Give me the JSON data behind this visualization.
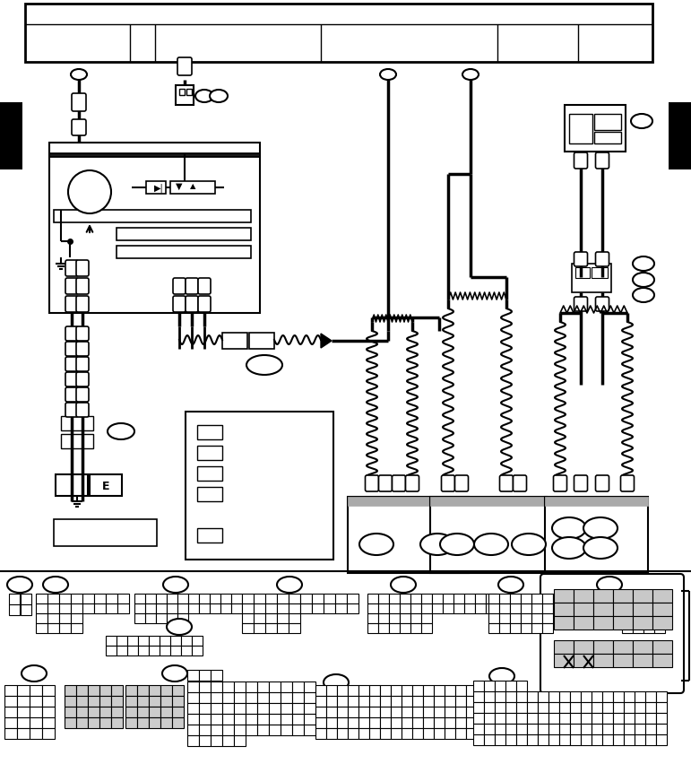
{
  "bg_color": "#ffffff",
  "line_color": "#000000",
  "fig_width": 7.71,
  "fig_height": 8.53,
  "dpi": 100
}
